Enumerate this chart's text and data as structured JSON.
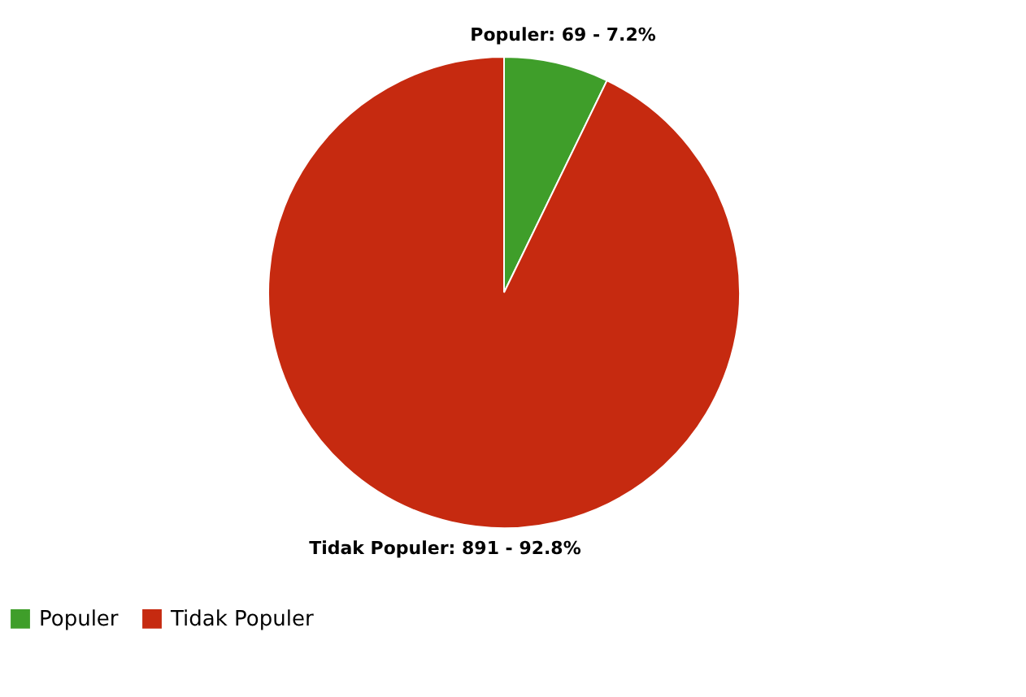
{
  "chart_data": {
    "type": "pie",
    "categories": [
      "Populer",
      "Tidak Populer"
    ],
    "values": [
      69,
      891
    ],
    "colors": [
      "#3f9e2a",
      "#c62a10"
    ],
    "value_labels": [
      "Populer: 69 - 7.2%",
      "Tidak Populer: 891 - 92.8%"
    ],
    "legend": "bottom"
  }
}
